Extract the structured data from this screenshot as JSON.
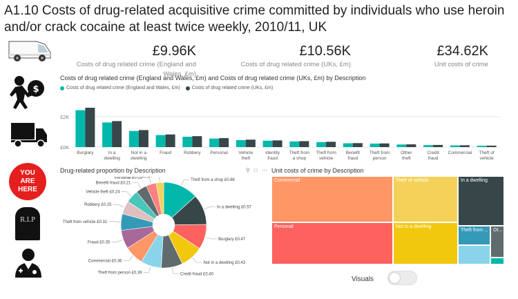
{
  "title": "A1.10 Costs of drug-related acquisitive crime committed by individuals who use heroin and/or crack cocaine at least twice weekly, 2010/11, UK",
  "kpis": [
    {
      "value": "£9.96K",
      "label": "Costs of drug related crime (England and Wales, £m)"
    },
    {
      "value": "£10.56K",
      "label": "Costs of drug related crime (UKs, £m)"
    },
    {
      "value": "£34.62K",
      "label": "Unit costs of crime"
    }
  ],
  "icons": [
    "van-icon",
    "thief-icon",
    "truck-icon",
    "you-are-here-sign-icon",
    "tombstone-icon",
    "doctor-icon"
  ],
  "icon_text": {
    "you_are_here": "YOU ARE HERE",
    "rip": "R.I.P"
  },
  "colors": {
    "teal": "#01b8aa",
    "dark": "#374649",
    "coral": "#fd625e",
    "yellow": "#f2c80f",
    "grey": "#5f6b6d",
    "blue": "#8ad4eb",
    "orange": "#fe9666"
  },
  "bar_chart": {
    "title": "Costs of drug related crime (England and Wales, £m) and Costs of drug related crime (UKs, £m) by Description",
    "legend": [
      "Costs of drug related crime (England and Wales, £m)",
      "Costs of drug related crime (UKs, £m)"
    ],
    "tick_labels": [
      "£2K",
      "£0K"
    ]
  },
  "donut_chart": {
    "title": "Drug-related proportion by Description"
  },
  "treemap": {
    "title": "Unit costs of crime by Description",
    "cells": [
      "Commercial",
      "Theft of vehicle",
      "In a dwelling",
      "Personal",
      "Not in a dwelling",
      "Theft from ...",
      "Ot..."
    ]
  },
  "toolbar_icons": [
    "pin-icon",
    "copy-icon",
    "more-icon"
  ],
  "toggle": {
    "label": "Visuals",
    "on": false
  },
  "chart_data": [
    {
      "type": "bar",
      "categories": [
        "Burglary",
        "In a dwelling",
        "Not in a dwelling",
        "Fraud",
        "Robbery",
        "Personal",
        "Vehicle theft",
        "Identity fraud",
        "Theft from a shop",
        "Theft from vehicle",
        "Benefit fraud",
        "Theft from person",
        "Other theft",
        "Credit fraud",
        "Commercial",
        "Theft of vehicle"
      ],
      "series": [
        {
          "name": "Costs of drug related crime (England and Wales, £m)",
          "values": [
            2430,
            1620,
            1060,
            790,
            680,
            560,
            460,
            420,
            370,
            330,
            250,
            230,
            170,
            130,
            110,
            90
          ]
        },
        {
          "name": "Costs of drug related crime (UKs, £m)",
          "values": [
            2590,
            1710,
            1120,
            830,
            720,
            590,
            490,
            440,
            390,
            350,
            260,
            240,
            180,
            140,
            120,
            95
          ]
        }
      ],
      "ylim": [
        0,
        3000
      ],
      "yticks": [
        "£2K",
        "£0K"
      ]
    },
    {
      "type": "pie",
      "slices": [
        {
          "label": "Theft from a shop £0.66",
          "value": 0.66
        },
        {
          "label": "In a dwelling £0.57",
          "value": 0.57
        },
        {
          "label": "Burglary £0.47",
          "value": 0.47
        },
        {
          "label": "Not in a dwelling £0.43",
          "value": 0.43
        },
        {
          "label": "Credit fraud £0.40",
          "value": 0.4
        },
        {
          "label": "Theft from person £0.39",
          "value": 0.39
        },
        {
          "label": "Commercial £0.36",
          "value": 0.36
        },
        {
          "label": "Fraud £0.35",
          "value": 0.35
        },
        {
          "label": "Theft from vehicle £0.31",
          "value": 0.31
        },
        {
          "label": "Robbery £0.25",
          "value": 0.25
        },
        {
          "label": "Vehicle theft £0.24",
          "value": 0.24
        },
        {
          "label": "Benefit fraud £0.21",
          "value": 0.21
        },
        {
          "label": "Personal £0.19",
          "value": 0.19
        },
        {
          "label": "Other theft £0.14",
          "value": 0.14
        }
      ],
      "colors": [
        "#01b8aa",
        "#374649",
        "#fd625e",
        "#f2c80f",
        "#5f6b6d",
        "#8ad4eb",
        "#fe9666",
        "#a66999",
        "#3599b8",
        "#dfbfbf",
        "#4ac5bb",
        "#5f6b6d",
        "#fb8281",
        "#f4d25a"
      ]
    },
    {
      "type": "treemap",
      "cells": [
        {
          "label": "Commercial",
          "color": "#fe9666"
        },
        {
          "label": "Personal",
          "color": "#fd625e"
        },
        {
          "label": "Theft of vehicle",
          "color": "#f4d25a"
        },
        {
          "label": "Not in a dwelling",
          "color": "#f2c80f"
        },
        {
          "label": "In a dwelling",
          "color": "#374649"
        },
        {
          "label": "Theft from ...",
          "color": "#3599b8"
        },
        {
          "label": "Ot...",
          "color": "#5f6b6d"
        }
      ]
    }
  ]
}
